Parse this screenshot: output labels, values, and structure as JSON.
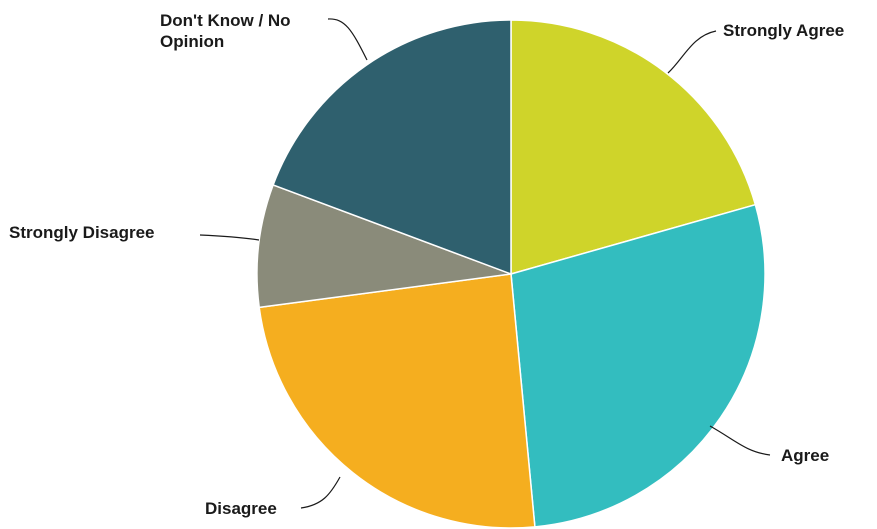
{
  "chart_data": {
    "type": "pie",
    "title": "",
    "slices": [
      {
        "label": "Strongly Agree",
        "label_lines": [
          "Strongly Agree"
        ],
        "value": 20.6,
        "color": "#cfd42a"
      },
      {
        "label": "Agree",
        "label_lines": [
          "Agree"
        ],
        "value": 27.9,
        "color": "#33bdbf"
      },
      {
        "label": "Disagree",
        "label_lines": [
          "Disagree"
        ],
        "value": 24.4,
        "color": "#f5ae1f"
      },
      {
        "label": "Strongly Disagree",
        "label_lines": [
          "Strongly Disagree"
        ],
        "value": 7.8,
        "color": "#8a8b7a"
      },
      {
        "label": "Don't Know / No Opinion",
        "label_lines": [
          "Don't Know / No",
          "Opinion"
        ],
        "value": 19.3,
        "color": "#2f606e"
      }
    ],
    "legend": "none",
    "start_angle": "12 o'clock",
    "direction": "clockwise"
  }
}
